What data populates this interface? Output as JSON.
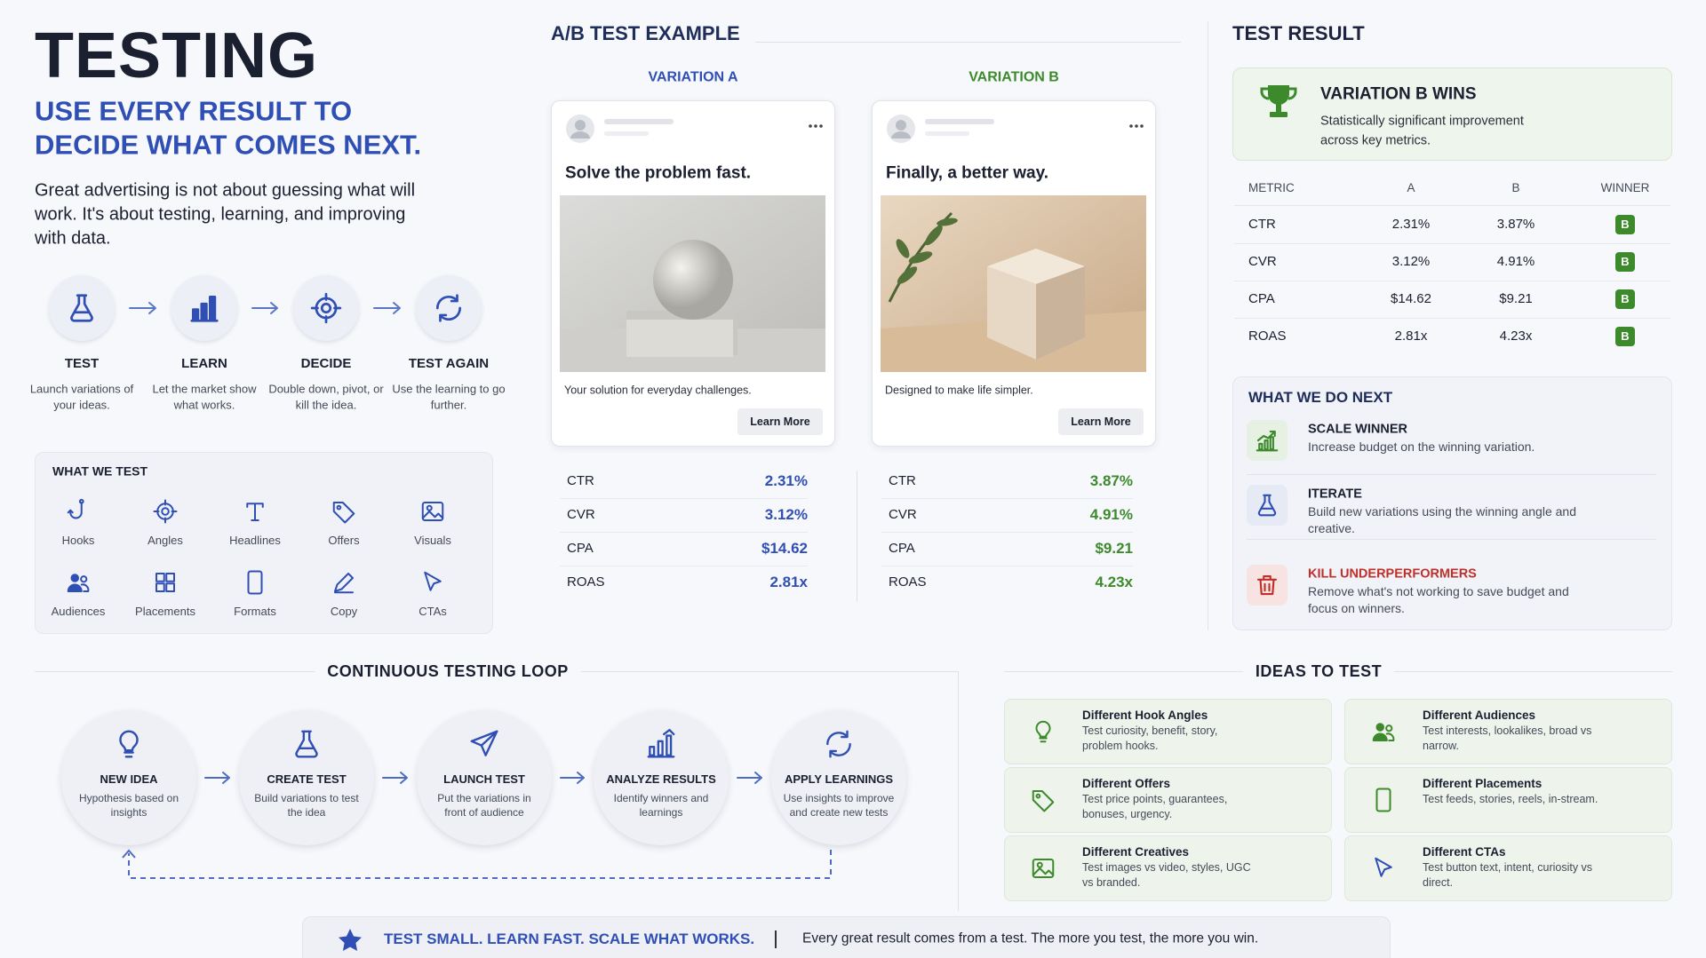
{
  "header": {
    "title": "TESTING",
    "subtitle_lines": [
      "USE EVERY RESULT TO",
      "DECIDE WHAT COMES NEXT."
    ],
    "intro": "Great advertising is not about guessing what will work. It's about testing, learning, and improving with data."
  },
  "steps": [
    {
      "label": "TEST",
      "desc": "Launch variations of your ideas."
    },
    {
      "label": "LEARN",
      "desc": "Let the market show what works."
    },
    {
      "label": "DECIDE",
      "desc": "Double down, pivot, or kill the idea."
    },
    {
      "label": "TEST AGAIN",
      "desc": "Use the learning to go further."
    }
  ],
  "what_we_test": {
    "title": "WHAT WE TEST",
    "items": [
      "Hooks",
      "Angles",
      "Headlines",
      "Offers",
      "Visuals",
      "Audiences",
      "Placements",
      "Formats",
      "Copy",
      "CTAs"
    ]
  },
  "ab_test": {
    "title": "A/B TEST EXAMPLE",
    "variations": [
      {
        "name": "VARIATION A",
        "headline": "Solve the problem fast.",
        "caption": "Your solution for everyday challenges.",
        "button": "Learn More",
        "metrics": [
          {
            "label": "CTR",
            "value": "2.31%"
          },
          {
            "label": "CVR",
            "value": "3.12%"
          },
          {
            "label": "CPA",
            "value": "$14.62"
          },
          {
            "label": "ROAS",
            "value": "2.81x"
          }
        ]
      },
      {
        "name": "VARIATION B",
        "headline": "Finally, a better way.",
        "caption": "Designed to make life simpler.",
        "button": "Learn More",
        "metrics": [
          {
            "label": "CTR",
            "value": "3.87%"
          },
          {
            "label": "CVR",
            "value": "4.91%"
          },
          {
            "label": "CPA",
            "value": "$9.21"
          },
          {
            "label": "ROAS",
            "value": "4.23x"
          }
        ]
      }
    ]
  },
  "test_result": {
    "title": "TEST RESULT",
    "winner": {
      "title": "VARIATION B WINS",
      "desc_lines": [
        "Statistically significant improvement",
        "across key metrics."
      ]
    },
    "table": {
      "headers": [
        "METRIC",
        "A",
        "B",
        "WINNER"
      ],
      "rows": [
        [
          "CTR",
          "2.31%",
          "3.87%",
          "B"
        ],
        [
          "CVR",
          "3.12%",
          "4.91%",
          "B"
        ],
        [
          "CPA",
          "$14.62",
          "$9.21",
          "B"
        ],
        [
          "ROAS",
          "2.81x",
          "4.23x",
          "B"
        ]
      ]
    },
    "next": {
      "title": "WHAT WE DO NEXT",
      "items": [
        {
          "title": "SCALE WINNER",
          "desc": "Increase budget on the winning variation."
        },
        {
          "title": "ITERATE",
          "desc": "Build new variations using the winning angle and creative."
        },
        {
          "title": "KILL UNDERPERFORMERS",
          "desc": "Remove what's not working to save budget and focus on winners."
        }
      ]
    }
  },
  "loop": {
    "title": "CONTINUOUS TESTING LOOP",
    "steps": [
      {
        "title": "NEW IDEA",
        "desc": "Hypothesis based on insights"
      },
      {
        "title": "CREATE TEST",
        "desc": "Build variations to test the idea"
      },
      {
        "title": "LAUNCH TEST",
        "desc": "Put the variations in front of audience"
      },
      {
        "title": "ANALYZE RESULTS",
        "desc": "Identify winners and learnings"
      },
      {
        "title": "APPLY LEARNINGS",
        "desc": "Use insights to improve and create new tests"
      }
    ]
  },
  "ideas": {
    "title": "IDEAS TO TEST",
    "items": [
      {
        "title": "Different Hook Angles",
        "desc": "Test curiosity, benefit, story, problem hooks."
      },
      {
        "title": "Different Audiences",
        "desc": "Test interests, lookalikes, broad vs narrow."
      },
      {
        "title": "Different Offers",
        "desc": "Test price points, guarantees, bonuses, urgency."
      },
      {
        "title": "Different Placements",
        "desc": "Test feeds, stories, reels, in-stream."
      },
      {
        "title": "Different Creatives",
        "desc": "Test images vs video, styles, UGC vs branded."
      },
      {
        "title": "Different CTAs",
        "desc": "Test button text, intent, curiosity vs direct."
      }
    ]
  },
  "footer": {
    "tagline": "TEST SMALL. LEARN FAST. SCALE WHAT WORKS.",
    "text": "Every great result comes from a test. The more you test, the more you win."
  }
}
